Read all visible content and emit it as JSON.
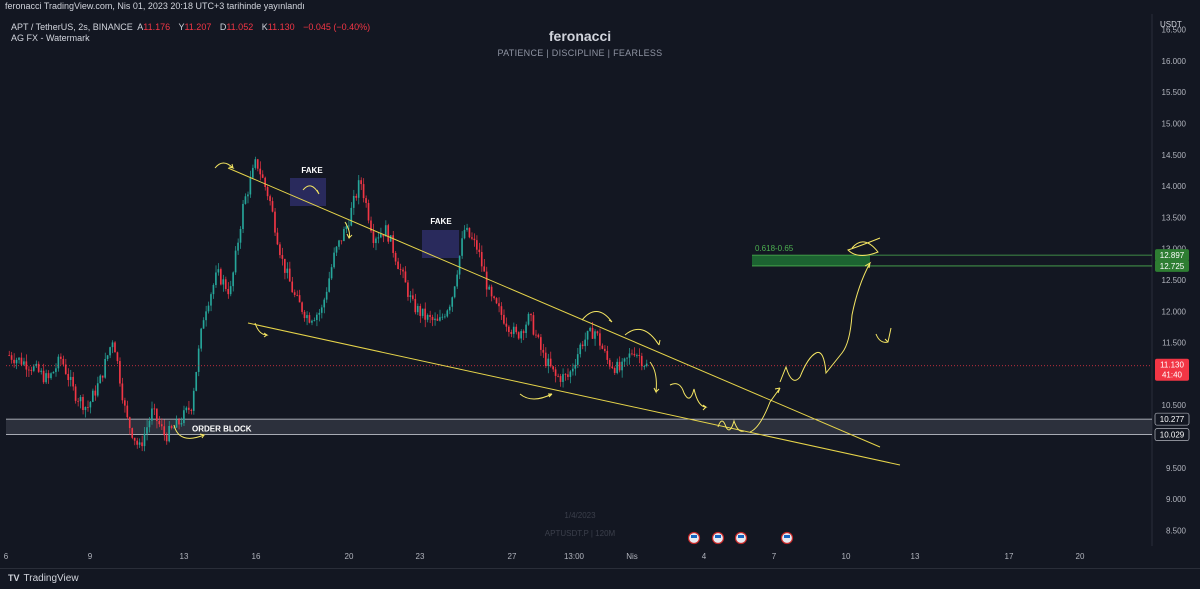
{
  "header": {
    "published": "feronacci TradingView.com, Nis 01, 2023 20:18 UTC+3 tarihinde yayınlandı",
    "symbol": "APT / TetherUS, 2s, BINANCE",
    "ohlc": [
      {
        "label": "A",
        "value": "11.176"
      },
      {
        "label": "Y",
        "value": "11.207"
      },
      {
        "label": "D",
        "value": "11.052"
      },
      {
        "label": "K",
        "value": "11.130"
      }
    ],
    "change": "−0.045 (−0.40%)",
    "indicator": "AG FX - Watermark"
  },
  "watermark": {
    "title": "feronacci",
    "subtitle": "PATIENCE  |  DISCIPLINE  |  FEARLESS",
    "bg_date": "1/4/2023",
    "bg_symbol": "APTUSDT.P  |  120M"
  },
  "branding": {
    "logo": "TV",
    "name": "TradingView"
  },
  "colors": {
    "background": "#131722",
    "up": "#26a69a",
    "down": "#f23645",
    "trendline": "#e6d44a",
    "fib_zone": "#1e6b33",
    "fib_text": "#4caf50",
    "order_block": "#363a45"
  },
  "chart_data": {
    "type": "candlestick",
    "currency": "USDT",
    "ylim": [
      8.25,
      16.75
    ],
    "yticks": [
      "16.500",
      "16.000",
      "15.500",
      "15.000",
      "14.500",
      "14.000",
      "13.500",
      "13.000",
      "12.500",
      "12.000",
      "11.500",
      "11.000",
      "10.500",
      "10.000",
      "9.500",
      "9.000",
      "8.500"
    ],
    "xticks": [
      "6",
      "9",
      "13",
      "16",
      "20",
      "23",
      "27",
      "13:00",
      "Nis",
      "4",
      "7",
      "10",
      "13",
      "17",
      "20"
    ],
    "last_price": {
      "value": "11.130",
      "countdown": "41:40"
    },
    "price_tags": [
      {
        "value": "12.897",
        "color": "#4caf50"
      },
      {
        "value": "12.725",
        "color": "#4caf50"
      },
      {
        "value": "10.277",
        "color": "#d1d4dc"
      },
      {
        "value": "10.029",
        "color": "#d1d4dc"
      }
    ],
    "zones": [
      {
        "name": "fib",
        "label": "0.618-0.65",
        "top": 12.897,
        "bottom": 12.725
      },
      {
        "name": "order-block",
        "label": "ORDER BLOCK",
        "top": 10.277,
        "bottom": 10.029
      }
    ],
    "annotations": [
      {
        "text": "FAKE",
        "x": "16",
        "y": 14.4
      },
      {
        "text": "FAKE",
        "x": "23",
        "y": 13.6
      }
    ],
    "candles_note": "approximate path of closes from Mar 5 to Apr 1",
    "path": [
      [
        0,
        11.3
      ],
      [
        3,
        11.15
      ],
      [
        6,
        10.9
      ],
      [
        8,
        11.25
      ],
      [
        10,
        10.7
      ],
      [
        12,
        10.45
      ],
      [
        14,
        10.9
      ],
      [
        16,
        11.6
      ],
      [
        18,
        10.3
      ],
      [
        20,
        9.8
      ],
      [
        22,
        10.4
      ],
      [
        24,
        10.0
      ],
      [
        26,
        10.2
      ],
      [
        28,
        10.5
      ],
      [
        30,
        12.0
      ],
      [
        32,
        12.6
      ],
      [
        34,
        12.3
      ],
      [
        36,
        13.7
      ],
      [
        38,
        14.4
      ],
      [
        40,
        13.8
      ],
      [
        42,
        12.8
      ],
      [
        44,
        12.2
      ],
      [
        46,
        11.9
      ],
      [
        48,
        12.0
      ],
      [
        50,
        12.9
      ],
      [
        52,
        13.4
      ],
      [
        54,
        14.1
      ],
      [
        56,
        13.2
      ],
      [
        58,
        13.3
      ],
      [
        60,
        12.7
      ],
      [
        62,
        12.1
      ],
      [
        64,
        11.9
      ],
      [
        66,
        11.8
      ],
      [
        68,
        12.2
      ],
      [
        70,
        13.3
      ],
      [
        72,
        13.0
      ],
      [
        74,
        12.2
      ],
      [
        76,
        11.9
      ],
      [
        78,
        11.6
      ],
      [
        80,
        11.9
      ],
      [
        82,
        11.3
      ],
      [
        84,
        10.95
      ],
      [
        86,
        10.95
      ],
      [
        88,
        11.5
      ],
      [
        90,
        11.7
      ],
      [
        92,
        11.2
      ],
      [
        94,
        11.05
      ],
      [
        96,
        11.4
      ],
      [
        98,
        11.13
      ]
    ]
  }
}
